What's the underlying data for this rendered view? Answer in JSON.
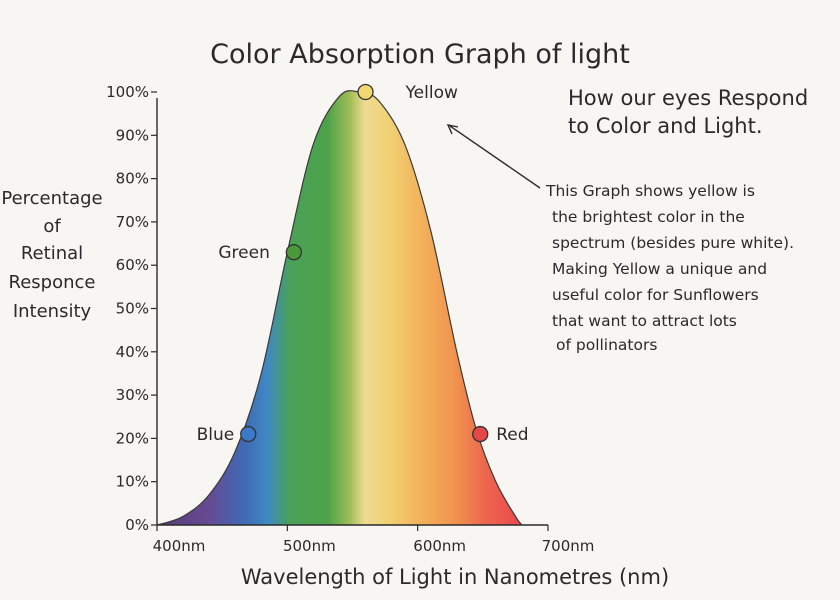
{
  "colors": {
    "paper": "#f7f6f2",
    "ink": "#2a2a2a",
    "violet": "#5a3a8a",
    "blue": "#2f6fc0",
    "green": "#3e9a3a",
    "yellow": "#f0d270",
    "orange": "#f0a040",
    "red": "#e83a3a"
  },
  "chart_data": {
    "type": "area",
    "title": "Color Absorption Graph of light",
    "xlabel": "Wavelength of Light in Nanometres (nm)",
    "ylabel_lines": [
      "Percentage",
      "of",
      "Retinal",
      "Responce",
      "Intensity"
    ],
    "x_ticks": [
      "400nm",
      "500nm",
      "600nm",
      "700nm"
    ],
    "y_ticks": [
      "0%",
      "10%",
      "20%",
      "30%",
      "40%",
      "50%",
      "60%",
      "70%",
      "80%",
      "90%",
      "100%"
    ],
    "xlim": [
      400,
      700
    ],
    "ylim": [
      0,
      100
    ],
    "grid": false,
    "curve": {
      "x": [
        400,
        420,
        440,
        460,
        480,
        500,
        520,
        540,
        555,
        570,
        590,
        610,
        630,
        645,
        660,
        675,
        680
      ],
      "y": [
        0,
        2,
        7,
        17,
        35,
        63,
        88,
        99,
        100,
        98,
        88,
        68,
        40,
        22,
        10,
        2,
        0
      ]
    },
    "points": [
      {
        "label": "Blue",
        "x": 470,
        "y": 21
      },
      {
        "label": "Green",
        "x": 505,
        "y": 63
      },
      {
        "label": "Yellow",
        "x": 560,
        "y": 100
      },
      {
        "label": "Red",
        "x": 648,
        "y": 21
      }
    ],
    "annotation_heading": [
      "How our eyes Respond",
      "to Color and Light."
    ],
    "annotation_note": [
      "This Graph shows yellow is",
      "the brightest color in the",
      "spectrum (besides pure white).",
      "Making Yellow a unique and",
      "useful color for Sunflowers",
      "that want to attract lots",
      "of pollinators"
    ]
  }
}
